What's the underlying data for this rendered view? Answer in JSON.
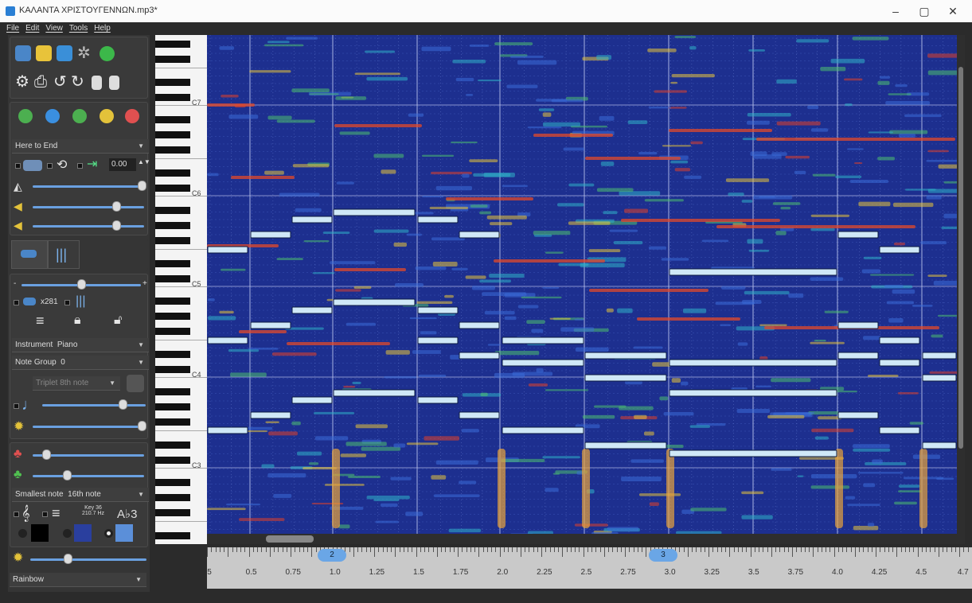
{
  "window": {
    "title": "ΚΑΛΑΝΤΑ ΧΡΙΣΤΟΥΓΕΝΝΩΝ.mp3*",
    "min": "–",
    "restore": "▢",
    "close": "✕"
  },
  "menu": [
    "File",
    "Edit",
    "View",
    "Tools",
    "Help"
  ],
  "left": {
    "play_range": "Here to End",
    "speed_value": "0.00",
    "zoom_label": "x281",
    "instrument_label": "Instrument",
    "instrument_value": "Piano",
    "note_group_label": "Note Group",
    "note_group_value": "0",
    "triplet_value": "Triplet 8th note",
    "smallest_note_label": "Smallest note",
    "smallest_note_value": "16th note",
    "key_info_line1": "Key 36",
    "key_info_line2": "210.7 Hz",
    "key_sig": "A♭3",
    "colormap": "Rainbow",
    "slider_levels": {
      "speed": 1.0,
      "volume1": 0.72,
      "volume2": 0.72,
      "zoom": 0.5,
      "note_vol": 0.85,
      "brightness": 0.95,
      "r1": 0.1,
      "r2": 0.3,
      "br2": 0.3
    }
  },
  "piano": {
    "labels": [
      "C7",
      "C6",
      "C5",
      "C4",
      "C3"
    ]
  },
  "ruler": {
    "labels": [
      "5",
      "0.5",
      "0.75",
      "1.0",
      "1.25",
      "1.5",
      "1.75",
      "2.0",
      "2.25",
      "2.5",
      "2.75",
      "3.0",
      "3.25",
      "3.5",
      "3.75",
      "4.0",
      "4.25",
      "4.5",
      "4.7"
    ],
    "bars": [
      "2",
      "3"
    ]
  },
  "colors": {
    "bg_deep": "#1d2f8f",
    "note_fill": "#cfe8f7",
    "panel": "#353535"
  }
}
